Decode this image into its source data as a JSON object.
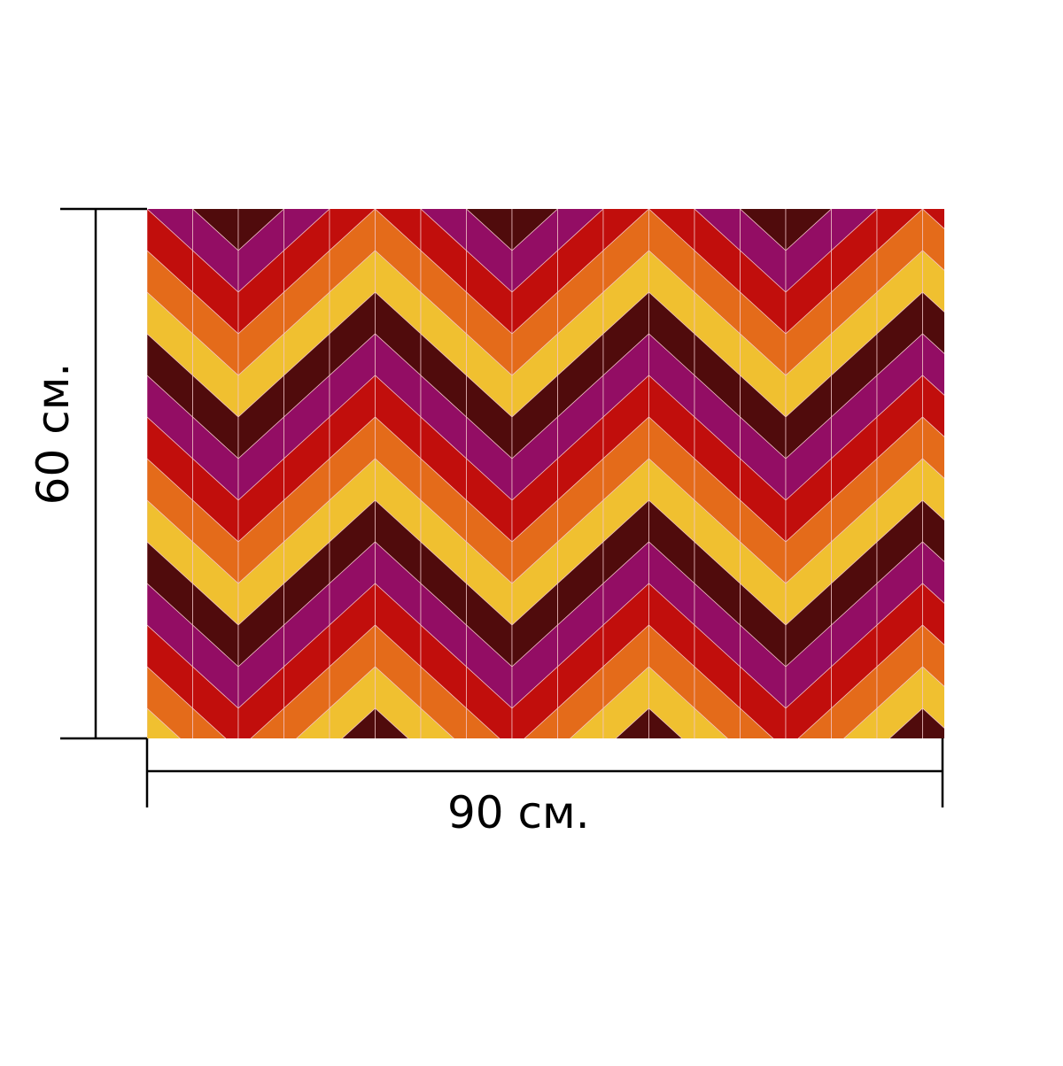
{
  "dimensions": {
    "width_label": "90 см.",
    "height_label": "60 см."
  },
  "pattern": {
    "name": "chevron",
    "colors": [
      "#e46b1a",
      "#f0c030",
      "#500b0c",
      "#930d64",
      "#c10e0c"
    ],
    "line_color": "#f3c6c8",
    "dimension_line_color": "#000000"
  }
}
